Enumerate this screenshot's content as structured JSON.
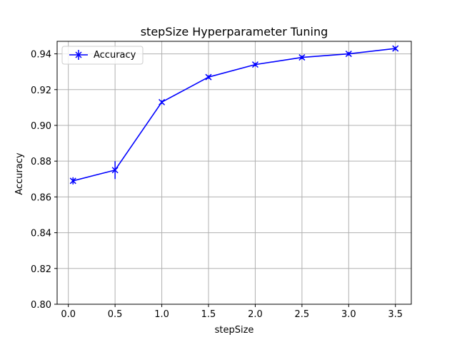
{
  "chart_data": {
    "type": "line",
    "title": "stepSize Hyperparameter Tuning",
    "xlabel": "stepSize",
    "ylabel": "Accuracy",
    "xlim": [
      -0.12,
      3.67
    ],
    "ylim": [
      0.8,
      0.947
    ],
    "xticks": [
      0.0,
      0.5,
      1.0,
      1.5,
      2.0,
      2.5,
      3.0,
      3.5
    ],
    "xtick_labels": [
      "0.0",
      "0.5",
      "1.0",
      "1.5",
      "2.0",
      "2.5",
      "3.0",
      "3.5"
    ],
    "yticks": [
      0.8,
      0.82,
      0.84,
      0.86,
      0.88,
      0.9,
      0.92,
      0.94
    ],
    "ytick_labels": [
      "0.80",
      "0.82",
      "0.84",
      "0.86",
      "0.88",
      "0.90",
      "0.92",
      "0.94"
    ],
    "grid": true,
    "legend_position": "top-left",
    "series": [
      {
        "name": "Accuracy",
        "color": "#0000ff",
        "marker": "x",
        "x": [
          0.05,
          0.5,
          1.0,
          1.5,
          2.0,
          2.5,
          3.0,
          3.5
        ],
        "y": [
          0.869,
          0.875,
          0.913,
          0.927,
          0.934,
          0.938,
          0.94,
          0.943
        ],
        "yerr": [
          0.002,
          0.005,
          0.001,
          0.001,
          0.001,
          0.001,
          0.001,
          0.001
        ]
      }
    ]
  }
}
